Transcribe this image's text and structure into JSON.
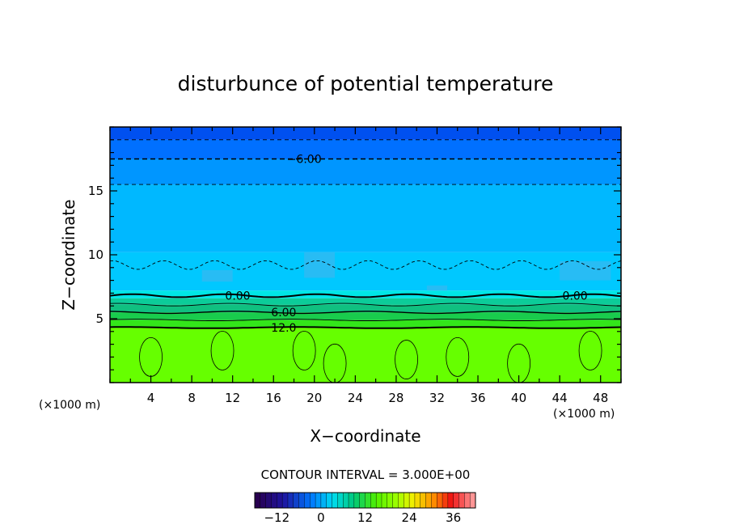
{
  "chart_data": {
    "type": "heatmap",
    "title": "disturbunce of potential temperature",
    "xlabel": "X−coordinate",
    "ylabel": "Z−coordinate",
    "x_unit_left": "(×1000 m)",
    "x_unit_right": "(×1000 m)",
    "xlim": [
      0,
      50
    ],
    "ylim": [
      0,
      20
    ],
    "x_ticks": [
      4,
      8,
      12,
      16,
      20,
      24,
      28,
      32,
      36,
      40,
      44,
      48
    ],
    "y_ticks": [
      5,
      10,
      15
    ],
    "grid": false,
    "contour_interval_text": "CONTOUR INTERVAL = 3.000E+00",
    "contour_labels": [
      {
        "text": "−6.00",
        "x": 19,
        "z": 17.5
      },
      {
        "text": "0.00",
        "x": 12.5,
        "z": 6.8
      },
      {
        "text": "0.00",
        "x": 45.5,
        "z": 6.8
      },
      {
        "text": "6.00",
        "x": 17,
        "z": 5.5
      },
      {
        "text": "12.0",
        "x": 17,
        "z": 4.3
      }
    ],
    "field_layers": [
      {
        "z_bottom": 0,
        "z_top": 4.3,
        "value": 13.5,
        "color": "#66ff00"
      },
      {
        "z_bottom": 4.3,
        "z_top": 4.9,
        "value": 10.5,
        "color": "#33e61a"
      },
      {
        "z_bottom": 4.9,
        "z_top": 5.5,
        "value": 7.5,
        "color": "#19cc4d"
      },
      {
        "z_bottom": 5.5,
        "z_top": 6.1,
        "value": 4.5,
        "color": "#10c080"
      },
      {
        "z_bottom": 6.1,
        "z_top": 6.6,
        "value": 1.5,
        "color": "#0ccc99"
      },
      {
        "z_bottom": 6.6,
        "z_top": 7.2,
        "value": -1.5,
        "color": "#00e6e6"
      },
      {
        "z_bottom": 7.2,
        "z_top": 10.2,
        "value": -3.5,
        "color": "#00c8ff"
      },
      {
        "z_bottom": 10.2,
        "z_top": 15.5,
        "value": -4.5,
        "color": "#00b8ff"
      },
      {
        "z_bottom": 15.5,
        "z_top": 17.5,
        "value": -6.5,
        "color": "#0096ff"
      },
      {
        "z_bottom": 17.5,
        "z_top": 19.0,
        "value": -7.5,
        "color": "#0070ff"
      },
      {
        "z_bottom": 19.0,
        "z_top": 20.0,
        "value": -9.0,
        "color": "#0050f0"
      }
    ],
    "colorbar": {
      "ticks": [
        -12,
        0,
        12,
        24,
        36
      ],
      "range": [
        -18,
        42
      ]
    }
  }
}
